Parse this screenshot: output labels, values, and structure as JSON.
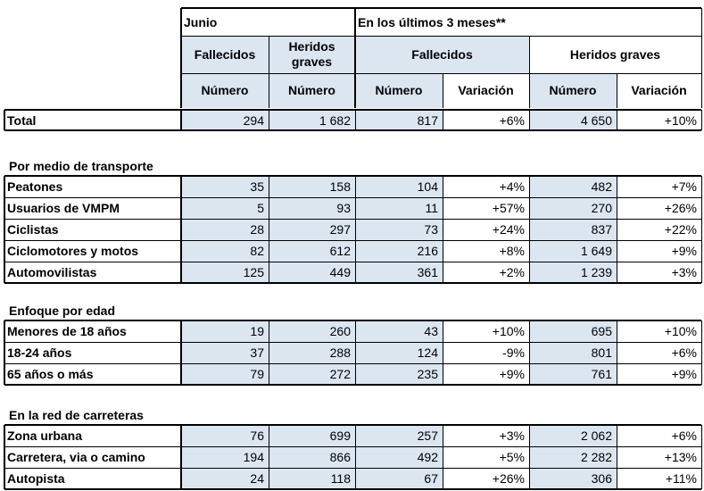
{
  "header": {
    "junio": "Junio",
    "ultimos": "En los últimos 3 meses**",
    "fallecidos": "Fallecidos",
    "heridos_graves_stacked": "Heridos graves",
    "fallecidos_3m": "Fallecidos",
    "heridos_graves_3m": "Heridos graves",
    "numero": "Número",
    "variacion": "Variación"
  },
  "total": {
    "label": "Total",
    "values": [
      "294",
      "1 682",
      "817",
      "+6%",
      "4 650",
      "+10%"
    ]
  },
  "sections": [
    {
      "title": "Por medio de transporte",
      "rows": [
        {
          "label": "Peatones",
          "values": [
            "35",
            "158",
            "104",
            "+4%",
            "482",
            "+7%"
          ]
        },
        {
          "label": "Usuarios de VMPM",
          "values": [
            "5",
            "93",
            "11",
            "+57%",
            "270",
            "+26%"
          ]
        },
        {
          "label": "Ciclistas",
          "values": [
            "28",
            "297",
            "73",
            "+24%",
            "837",
            "+22%"
          ]
        },
        {
          "label": "Ciclomotores y motos",
          "values": [
            "82",
            "612",
            "216",
            "+8%",
            "1 649",
            "+9%"
          ]
        },
        {
          "label": "Automovilistas",
          "values": [
            "125",
            "449",
            "361",
            "+2%",
            "1 239",
            "+3%"
          ]
        }
      ]
    },
    {
      "title": "Enfoque por edad",
      "rows": [
        {
          "label": "Menores de 18 años",
          "values": [
            "19",
            "260",
            "43",
            "+10%",
            "695",
            "+10%"
          ]
        },
        {
          "label": "18-24 años",
          "values": [
            "37",
            "288",
            "124",
            "-9%",
            "801",
            "+6%"
          ]
        },
        {
          "label": "65 años o más",
          "values": [
            "79",
            "272",
            "235",
            "+9%",
            "761",
            "+9%"
          ]
        }
      ]
    },
    {
      "title": "En la red de carreteras",
      "rows": [
        {
          "label": "Zona urbana",
          "values": [
            "76",
            "699",
            "257",
            "+3%",
            "2 062",
            "+6%"
          ]
        },
        {
          "label": "Carretera, via o camino",
          "values": [
            "194",
            "866",
            "492",
            "+5%",
            "2 282",
            "+13%"
          ]
        },
        {
          "label": "Autopista",
          "values": [
            "24",
            "118",
            "67",
            "+26%",
            "306",
            "+11%"
          ]
        }
      ]
    }
  ]
}
